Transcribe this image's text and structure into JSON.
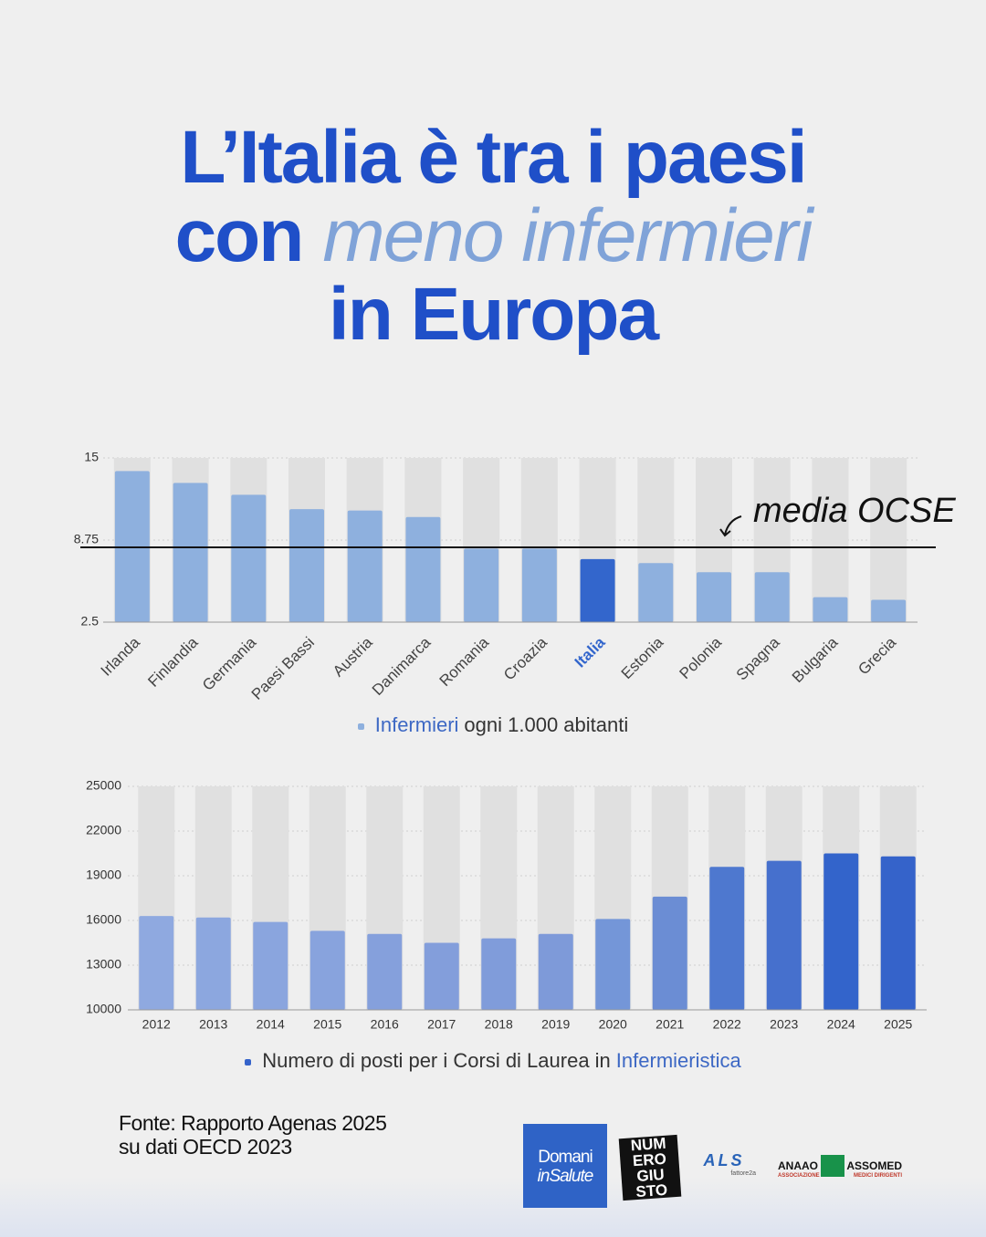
{
  "title": {
    "lines": [
      [
        {
          "text": "L’Italia è tra i paesi"
        }
      ],
      [
        {
          "text": "con"
        },
        {
          "text": "meno infermieri",
          "emphasis": true
        }
      ],
      [
        {
          "text": "in Europa"
        }
      ]
    ]
  },
  "chart_data": [
    {
      "type": "bar",
      "categories": [
        "Irlanda",
        "Finlandia",
        "Germania",
        "Paesi Bassi",
        "Austria",
        "Danimarca",
        "Romania",
        "Croazia",
        "Italia",
        "Estonia",
        "Polonia",
        "Spagna",
        "Bulgaria",
        "Grecia"
      ],
      "values": [
        14.0,
        13.1,
        12.2,
        11.1,
        11.0,
        10.5,
        8.1,
        8.1,
        7.3,
        7.0,
        6.3,
        6.3,
        4.4,
        4.2
      ],
      "color": "#8eb0de",
      "colors": [
        "#8eb0de",
        "#8eb0de",
        "#8eb0de",
        "#8eb0de",
        "#8eb0de",
        "#8eb0de",
        "#8eb0de",
        "#8eb0de",
        "#3366cc",
        "#8eb0de",
        "#8eb0de",
        "#8eb0de",
        "#8eb0de",
        "#8eb0de"
      ],
      "ylim": [
        2.5,
        15
      ],
      "yticks": [
        2.5,
        8.75,
        15
      ],
      "reference_line": {
        "value": 8.75,
        "label": "media OCSE"
      },
      "legend": [
        {
          "text": "Infermieri",
          "color": "#3d68c4"
        },
        {
          "text": "ogni 1.000 abitanti"
        }
      ],
      "legend_marker_color": "#8eb0de"
    },
    {
      "type": "bar",
      "categories": [
        "2012",
        "2013",
        "2014",
        "2015",
        "2016",
        "2017",
        "2018",
        "2019",
        "2020",
        "2021",
        "2022",
        "2023",
        "2024",
        "2025"
      ],
      "values": [
        16300,
        16200,
        15900,
        15300,
        15100,
        14500,
        14800,
        15100,
        16100,
        17600,
        19600,
        20000,
        20500,
        20300
      ],
      "color": "#8aa8df",
      "colors": [
        "#8fa9e0",
        "#8ca7df",
        "#8aa5de",
        "#88a3dd",
        "#85a0dc",
        "#839edb",
        "#809cda",
        "#7e9ad9",
        "#7496d8",
        "#6b8dd4",
        "#4e78cf",
        "#4670cd",
        "#3364cb",
        "#3563ca"
      ],
      "ylim": [
        10000,
        25000
      ],
      "yticks": [
        10000,
        13000,
        16000,
        19000,
        22000,
        25000
      ],
      "legend": [
        {
          "text": "Numero di posti per i Corsi di Laurea in"
        },
        {
          "text": "Infermieristica",
          "color": "#3d68c4"
        }
      ],
      "legend_marker_color": "#3563ca"
    }
  ],
  "source": [
    "Fonte: Rapporto Agenas 2025",
    "su dati OECD 2023"
  ],
  "logos": {
    "domani": [
      "Domani",
      "inSalute"
    ],
    "numero": [
      "NUM",
      "ERO",
      "GIU",
      "STO"
    ],
    "als": [
      "ALS",
      "fattore2a"
    ],
    "anaao": [
      "ANAAO",
      "ASSOMED",
      "ASSOCIAZIONE",
      "MEDICI DIRIGENTI"
    ]
  }
}
